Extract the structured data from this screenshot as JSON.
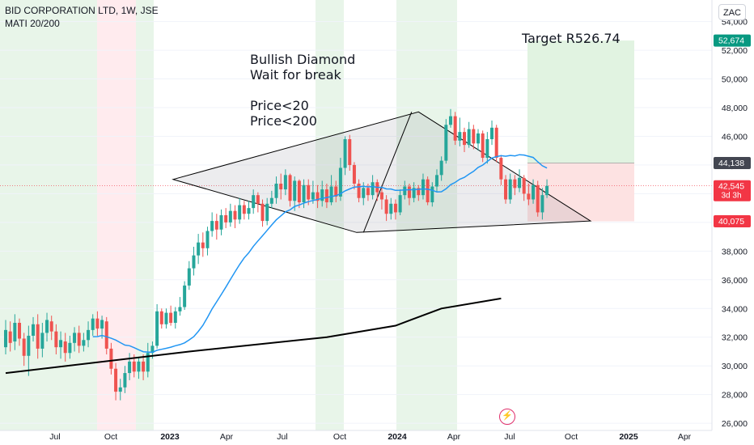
{
  "header": {
    "title": "BID CORPORATION LTD, 1W, JSE",
    "indicator": "MATI 20/200"
  },
  "currency_button": "ZAC",
  "annotations": {
    "pattern_lines": [
      "Bullish Diamond",
      "Wait for break",
      "",
      "Price<20",
      "Price<200"
    ],
    "target": "Target R526.74"
  },
  "colors": {
    "up": "#26a69a",
    "down": "#ef5350",
    "ma20": "#2196f3",
    "ma200": "#000000",
    "bull_bg": "#e8f5e9",
    "bear_bg": "#ffebee",
    "target_zone": "#e1f3e1",
    "stop_zone": "#fde2e2"
  },
  "chart_data": {
    "type": "candlestick",
    "x_ticks": [
      "Jul",
      "Oct",
      "2023",
      "Apr",
      "Jul",
      "Oct",
      "2024",
      "Apr",
      "Jul",
      "Oct",
      "2025",
      "Apr"
    ],
    "y_ticks": [
      26000,
      28000,
      30000,
      32000,
      34000,
      36000,
      38000,
      40000,
      42000,
      44000,
      46000,
      48000,
      50000,
      52000,
      54000
    ],
    "ylim": [
      25500,
      55500
    ],
    "price_labels": [
      {
        "text": "52,674",
        "value": 52674,
        "color": "#089981"
      },
      {
        "text": "44,138",
        "value": 44138,
        "color": "#434651"
      },
      {
        "text": "42,545",
        "sub": "3d 3h",
        "value": 42545,
        "color": "#f23645"
      },
      {
        "text": "40,075",
        "value": 40075,
        "color": "#f23645"
      }
    ],
    "candles_open_close_high_low": [
      [
        31300,
        32500,
        33200,
        30800
      ],
      [
        32400,
        31600,
        33100,
        31000
      ],
      [
        31700,
        33000,
        33600,
        31100
      ],
      [
        33000,
        31900,
        33300,
        31400
      ],
      [
        31900,
        30700,
        32300,
        30000
      ],
      [
        30700,
        32100,
        32800,
        29300
      ],
      [
        32100,
        32900,
        33400,
        31700
      ],
      [
        32900,
        31200,
        33600,
        30500
      ],
      [
        31200,
        32300,
        33000,
        30600
      ],
      [
        32300,
        33200,
        33700,
        31700
      ],
      [
        33100,
        32400,
        33500,
        31800
      ],
      [
        32400,
        31300,
        32900,
        30800
      ],
      [
        31300,
        31800,
        32400,
        30500
      ],
      [
        31700,
        30900,
        32300,
        30300
      ],
      [
        30900,
        31600,
        32100,
        30500
      ],
      [
        31600,
        32300,
        32700,
        31000
      ],
      [
        32300,
        31400,
        32800,
        30900
      ],
      [
        31400,
        31800,
        32300,
        31000
      ],
      [
        31800,
        32500,
        33100,
        31300
      ],
      [
        32500,
        33300,
        33600,
        32100
      ],
      [
        33300,
        32600,
        33800,
        32100
      ],
      [
        32600,
        33200,
        33500,
        31900
      ],
      [
        33100,
        31200,
        33400,
        30800
      ],
      [
        31200,
        29800,
        31600,
        29400
      ],
      [
        29800,
        28200,
        30200,
        27600
      ],
      [
        28200,
        28500,
        29100,
        27600
      ],
      [
        28500,
        29500,
        30000,
        28100
      ],
      [
        29500,
        30300,
        30900,
        29000
      ],
      [
        30300,
        29600,
        30800,
        29200
      ],
      [
        29600,
        30300,
        30600,
        29100
      ],
      [
        30300,
        29600,
        30800,
        29000
      ],
      [
        29600,
        30900,
        31600,
        29200
      ],
      [
        30900,
        31400,
        31700,
        30500
      ],
      [
        31400,
        33800,
        34300,
        31200
      ],
      [
        33800,
        32900,
        34000,
        32600
      ],
      [
        32900,
        33700,
        34000,
        32600
      ],
      [
        33700,
        33000,
        34200,
        32800
      ],
      [
        33000,
        33800,
        34100,
        32600
      ],
      [
        33800,
        34100,
        34800,
        33500
      ],
      [
        34100,
        35600,
        35900,
        33900
      ],
      [
        35600,
        36800,
        37300,
        35300
      ],
      [
        36800,
        37700,
        38300,
        36300
      ],
      [
        37700,
        38600,
        39200,
        37100
      ],
      [
        38600,
        38200,
        39300,
        37600
      ],
      [
        38200,
        39400,
        39700,
        37700
      ],
      [
        39400,
        40100,
        40700,
        39000
      ],
      [
        40100,
        39500,
        40600,
        38800
      ],
      [
        39500,
        40500,
        40900,
        39100
      ],
      [
        40500,
        40000,
        41000,
        39600
      ],
      [
        40000,
        40800,
        41300,
        39700
      ],
      [
        40800,
        40200,
        41200,
        39600
      ],
      [
        40200,
        41200,
        41700,
        39900
      ],
      [
        41200,
        40600,
        41500,
        40200
      ],
      [
        40600,
        41000,
        41500,
        40200
      ],
      [
        41000,
        41900,
        42300,
        40600
      ],
      [
        41900,
        41300,
        42100,
        40700
      ],
      [
        41300,
        40100,
        41600,
        39700
      ],
      [
        40100,
        41300,
        41700,
        39800
      ],
      [
        41300,
        41700,
        42200,
        41000
      ],
      [
        41700,
        42700,
        43200,
        41300
      ],
      [
        42700,
        42300,
        43400,
        41600
      ],
      [
        42300,
        43300,
        43700,
        41900
      ],
      [
        43300,
        41500,
        43400,
        41100
      ],
      [
        41500,
        42900,
        43200,
        40800
      ],
      [
        42900,
        41400,
        43000,
        41000
      ],
      [
        41400,
        42600,
        43000,
        41000
      ],
      [
        42600,
        41600,
        43000,
        41200
      ],
      [
        41600,
        42100,
        42900,
        41300
      ],
      [
        42100,
        41500,
        42600,
        41000
      ],
      [
        41500,
        42300,
        42900,
        41100
      ],
      [
        42300,
        41400,
        42700,
        41000
      ],
      [
        41400,
        42500,
        43300,
        41200
      ],
      [
        42500,
        41800,
        42900,
        41400
      ],
      [
        41800,
        43800,
        44500,
        41500
      ],
      [
        43800,
        45800,
        46000,
        43300
      ],
      [
        45800,
        44000,
        46100,
        43600
      ],
      [
        44000,
        42700,
        44200,
        42300
      ],
      [
        42700,
        41700,
        43000,
        41400
      ],
      [
        41700,
        42400,
        42800,
        41200
      ],
      [
        42400,
        41900,
        42700,
        41500
      ],
      [
        41900,
        42800,
        43300,
        41600
      ],
      [
        42800,
        42100,
        43000,
        41500
      ],
      [
        42100,
        41600,
        42400,
        40900
      ],
      [
        41600,
        40600,
        41900,
        40100
      ],
      [
        40600,
        41300,
        41700,
        40200
      ],
      [
        41300,
        40700,
        41600,
        40200
      ],
      [
        40700,
        41900,
        42300,
        40500
      ],
      [
        41900,
        42500,
        42900,
        41600
      ],
      [
        42500,
        41700,
        42700,
        41200
      ],
      [
        41700,
        42400,
        42800,
        41400
      ],
      [
        42400,
        41900,
        42600,
        41500
      ],
      [
        41900,
        43000,
        43400,
        41600
      ],
      [
        43000,
        41400,
        43200,
        41200
      ],
      [
        41400,
        42500,
        42800,
        41100
      ],
      [
        42500,
        43300,
        43700,
        42100
      ],
      [
        43300,
        44300,
        44600,
        42900
      ],
      [
        44300,
        46800,
        47200,
        44100
      ],
      [
        46800,
        47400,
        47900,
        46600
      ],
      [
        47400,
        45700,
        47700,
        45400
      ],
      [
        45700,
        46300,
        47300,
        45300
      ],
      [
        46300,
        45400,
        46600,
        44900
      ],
      [
        45400,
        46500,
        47000,
        45200
      ],
      [
        46500,
        45500,
        46800,
        45100
      ],
      [
        45500,
        46200,
        46500,
        45000
      ],
      [
        46200,
        44500,
        46400,
        44200
      ],
      [
        44500,
        45800,
        46300,
        44100
      ],
      [
        45800,
        46600,
        47100,
        45400
      ],
      [
        46600,
        44500,
        46800,
        44200
      ],
      [
        44500,
        43000,
        44700,
        42600
      ],
      [
        43000,
        41600,
        43300,
        41300
      ],
      [
        41600,
        43000,
        43400,
        41300
      ],
      [
        43000,
        42400,
        43300,
        41900
      ],
      [
        42400,
        43100,
        43700,
        42100
      ],
      [
        43100,
        42000,
        43300,
        41500
      ],
      [
        42000,
        41600,
        42700,
        41200
      ],
      [
        41600,
        42600,
        43000,
        41300
      ],
      [
        42600,
        40700,
        42900,
        40400
      ],
      [
        40700,
        41900,
        42400,
        40200
      ],
      [
        41900,
        42545,
        43000,
        41700
      ]
    ]
  }
}
